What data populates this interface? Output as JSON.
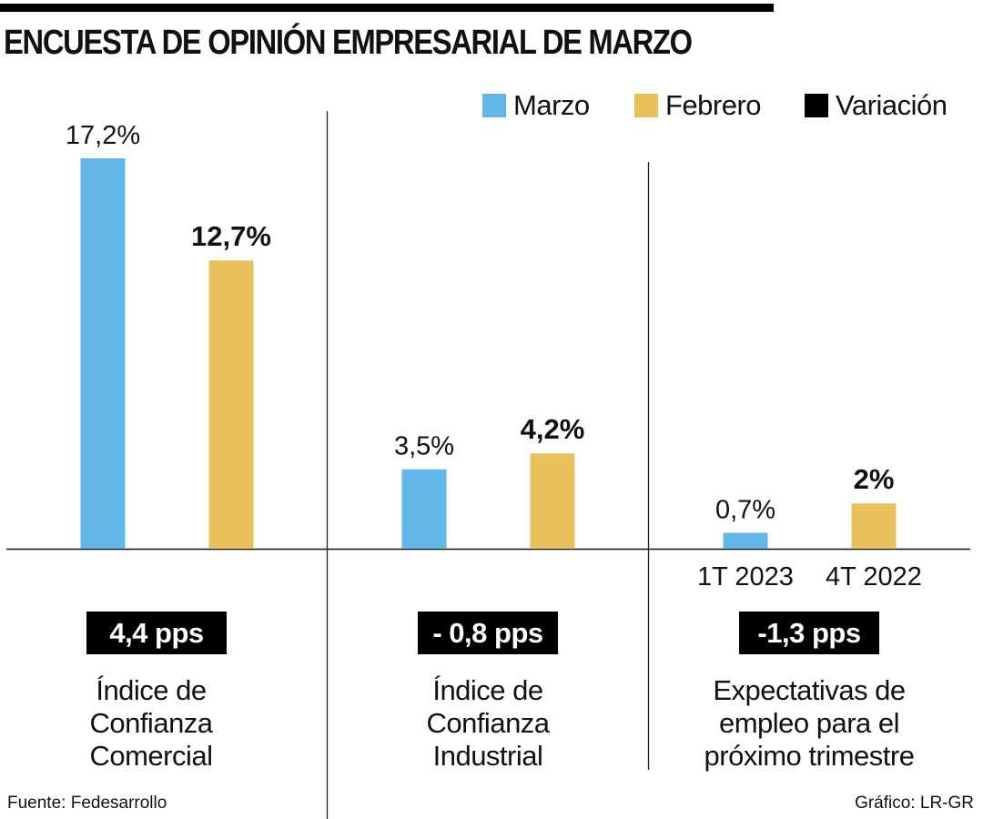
{
  "title": "ENCUESTA DE OPINIÓN EMPRESARIAL DE MARZO",
  "legend": [
    {
      "label": "Marzo",
      "color": "#62B7E8"
    },
    {
      "label": "Febrero",
      "color": "#E9C15C"
    },
    {
      "label": "Variación",
      "color": "#000000"
    }
  ],
  "footer": {
    "source": "Fuente: Fedesarrollo",
    "credit": "Gráfico: LR-GR"
  },
  "chart_data": {
    "type": "bar",
    "title": "ENCUESTA DE OPINIÓN EMPRESARIAL DE MARZO",
    "xlabel": "",
    "ylabel": "",
    "ylim": [
      0,
      17.2
    ],
    "grid": false,
    "legend_position": "top-right",
    "series_names": [
      "Marzo",
      "Febrero"
    ],
    "groups": [
      {
        "category": "Índice de Confianza Comercial",
        "category_lines": [
          "Índice de",
          "Confianza",
          "Comercial"
        ],
        "variation": "4,4 pps",
        "bars": [
          {
            "series": "Marzo",
            "value": 17.2,
            "label": "17,2%",
            "bold": false,
            "tick": ""
          },
          {
            "series": "Febrero",
            "value": 12.7,
            "label": "12,7%",
            "bold": true,
            "tick": ""
          }
        ]
      },
      {
        "category": "Índice de Confianza Industrial",
        "category_lines": [
          "Índice de",
          "Confianza",
          "Industrial"
        ],
        "variation": "- 0,8 pps",
        "bars": [
          {
            "series": "Marzo",
            "value": 3.5,
            "label": "3,5%",
            "bold": false,
            "tick": ""
          },
          {
            "series": "Febrero",
            "value": 4.2,
            "label": "4,2%",
            "bold": true,
            "tick": ""
          }
        ]
      },
      {
        "category": "Expectativas de empleo para el próximo trimestre",
        "category_lines": [
          "Expectativas de",
          "empleo para el",
          "próximo trimestre"
        ],
        "variation": "-1,3 pps",
        "bars": [
          {
            "series": "Marzo",
            "value": 0.7,
            "label": "0,7%",
            "bold": false,
            "tick": "1T 2023"
          },
          {
            "series": "Febrero",
            "value": 2,
            "label": "2%",
            "bold": true,
            "tick": "4T 2022"
          }
        ]
      }
    ]
  }
}
